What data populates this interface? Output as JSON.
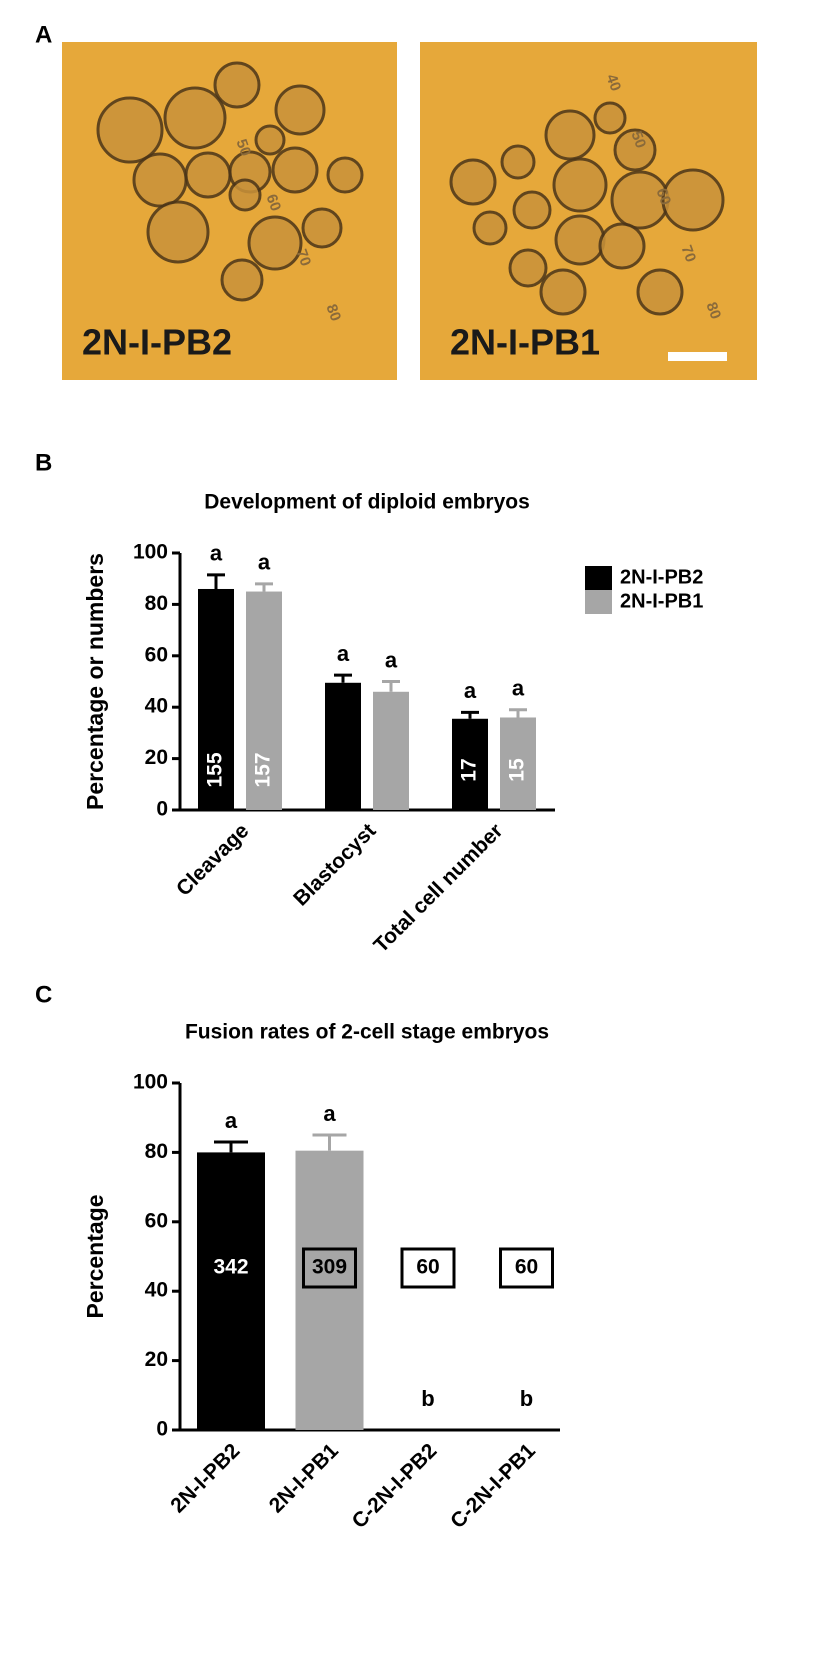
{
  "panel_labels": [
    "A",
    "B",
    "C"
  ],
  "images": [
    {
      "label": "2N-I-PB2",
      "ruler": [
        "50",
        "60",
        "70",
        "80"
      ]
    },
    {
      "label": "2N-I-PB1",
      "ruler": [
        "40",
        "50",
        "60",
        "70",
        "80"
      ]
    }
  ],
  "chart_data": [
    {
      "type": "bar",
      "title": "Development of diploid embryos",
      "ylabel": "Percentage or numbers",
      "categories": [
        "Cleavage",
        "Blastocyst",
        "Total cell number"
      ],
      "series": [
        {
          "name": "2N-I-PB2",
          "color": "#000000",
          "values": [
            86,
            49.5,
            35.5
          ],
          "errors": [
            5.5,
            3,
            2.5
          ],
          "letters": [
            "a",
            "a",
            "a"
          ],
          "n_labels": [
            "155",
            null,
            "17"
          ]
        },
        {
          "name": "2N-I-PB1",
          "color": "#a6a6a6",
          "values": [
            85,
            46,
            36
          ],
          "errors": [
            3,
            4,
            3
          ],
          "letters": [
            "a",
            "a",
            "a"
          ],
          "n_labels": [
            "157",
            null,
            "15"
          ]
        }
      ],
      "ylim": [
        0,
        100
      ],
      "yticks": [
        0,
        20,
        40,
        60,
        80,
        100
      ],
      "legend": "right"
    },
    {
      "type": "bar",
      "title": "Fusion rates of 2-cell stage embryos",
      "ylabel": "Percentage",
      "categories": [
        "2N-I-PB2",
        "2N-I-PB1",
        "C-2N-I-PB2",
        "C-2N-I-PB1"
      ],
      "values": [
        80,
        80.5,
        0,
        0
      ],
      "errors": [
        3,
        4.5,
        null,
        null
      ],
      "colors": [
        "#000000",
        "#a6a6a6",
        "#a6a6a6",
        "#a6a6a6"
      ],
      "letters": [
        "a",
        "a",
        "b",
        "b"
      ],
      "n_labels": [
        "342",
        "309",
        "60",
        "60"
      ],
      "n_boxed": [
        false,
        true,
        true,
        true
      ],
      "ylim": [
        0,
        100
      ],
      "yticks": [
        0,
        20,
        40,
        60,
        80,
        100
      ]
    }
  ]
}
